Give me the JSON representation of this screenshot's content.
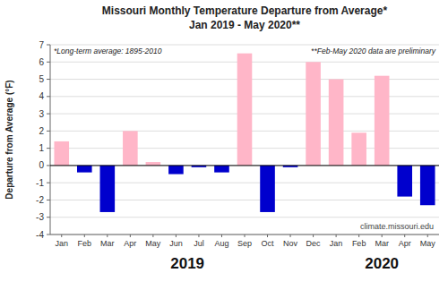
{
  "chart_data": {
    "type": "bar",
    "title": "Missouri Monthly Temperature Departure from Average*",
    "subtitle": "Jan 2019 - May 2020**",
    "y_label": "Departure from Average (°F)",
    "categories": [
      "Jan",
      "Feb",
      "Mar",
      "Apr",
      "May",
      "Jun",
      "Jul",
      "Aug",
      "Sep",
      "Oct",
      "Nov",
      "Dec",
      "Jan",
      "Feb",
      "Mar",
      "Apr",
      "May"
    ],
    "values": [
      1.4,
      -0.4,
      -2.7,
      2.0,
      0.2,
      -0.5,
      -0.1,
      -0.4,
      6.5,
      -2.7,
      -0.1,
      6.0,
      5.0,
      1.9,
      5.2,
      -1.8,
      -2.3
    ],
    "colors": [
      "#FFB6C8",
      "#0000CD",
      "#0000CD",
      "#FFB6C8",
      "#FFB6C8",
      "#0000CD",
      "#0000CD",
      "#0000CD",
      "#FFB6C8",
      "#0000CD",
      "#0000CD",
      "#FFB6C8",
      "#FFB6C8",
      "#FFB6C8",
      "#FFB6C8",
      "#0000CD",
      "#0000CD"
    ],
    "category_groups": [
      {
        "label": "2019",
        "first": 0,
        "last": 11
      },
      {
        "label": "2020",
        "first": 12,
        "last": 16
      }
    ],
    "annotations": [
      "*Long-term average: 1895-2010",
      "**Feb-May 2020 data are preliminary",
      "climate.missouri.edu"
    ],
    "ylim": [
      -4.0,
      7.0
    ],
    "yticks": [
      -4,
      -3,
      -2,
      -1,
      0,
      1,
      2,
      3,
      4,
      5,
      6,
      7
    ],
    "grid": true
  }
}
